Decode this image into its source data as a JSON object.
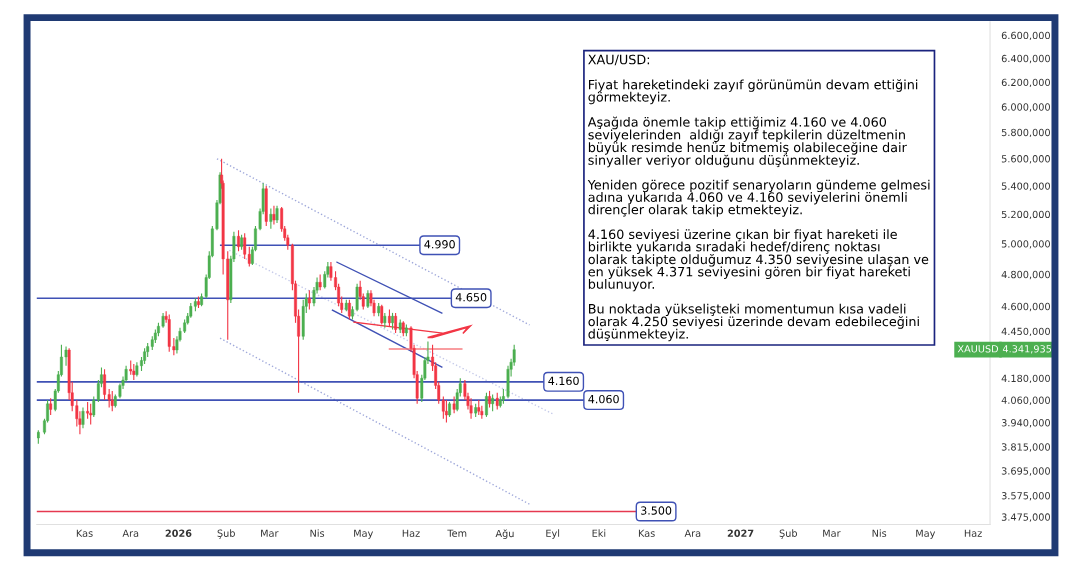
{
  "chart_data": {
    "type": "candlestick",
    "x": [
      "2025-10-02",
      "2025-10-06",
      "2025-10-08",
      "2025-10-10",
      "2025-10-13",
      "2025-10-15",
      "2025-10-17",
      "2025-10-20",
      "2025-10-22",
      "2025-10-24",
      "2025-10-27",
      "2025-10-29",
      "2025-10-31",
      "2025-11-03",
      "2025-11-05",
      "2025-11-07",
      "2025-11-10",
      "2025-11-12",
      "2025-11-14",
      "2025-11-17",
      "2025-11-19",
      "2025-11-21",
      "2025-11-24",
      "2025-11-26",
      "2025-11-28",
      "2025-12-01",
      "2025-12-03",
      "2025-12-05",
      "2025-12-08",
      "2025-12-10",
      "2025-12-12",
      "2025-12-15",
      "2025-12-17",
      "2025-12-19",
      "2025-12-22",
      "2025-12-24",
      "2025-12-26",
      "2025-12-29",
      "2025-12-31",
      "2026-01-02",
      "2026-01-05",
      "2026-01-07",
      "2026-01-09",
      "2026-01-12",
      "2026-01-14",
      "2026-01-16",
      "2026-01-19",
      "2026-01-21",
      "2026-01-23",
      "2026-01-26",
      "2026-01-28",
      "2026-01-29",
      "2026-01-30",
      "2026-02-02",
      "2026-02-04",
      "2026-02-06",
      "2026-02-09",
      "2026-02-11",
      "2026-02-13",
      "2026-02-16",
      "2026-02-18",
      "2026-02-20",
      "2026-02-23",
      "2026-02-25",
      "2026-02-27",
      "2026-03-02",
      "2026-03-04",
      "2026-03-06",
      "2026-03-09",
      "2026-03-11",
      "2026-03-13",
      "2026-03-16",
      "2026-03-18",
      "2026-03-20",
      "2026-03-23",
      "2026-03-25",
      "2026-03-27",
      "2026-03-30",
      "2026-04-01",
      "2026-04-03",
      "2026-04-06",
      "2026-04-08",
      "2026-04-10",
      "2026-04-13",
      "2026-04-15",
      "2026-04-17",
      "2026-04-20",
      "2026-04-22",
      "2026-04-24",
      "2026-04-27",
      "2026-04-29",
      "2026-05-01",
      "2026-05-04",
      "2026-05-06",
      "2026-05-08",
      "2026-05-11",
      "2026-05-13",
      "2026-05-15",
      "2026-05-18",
      "2026-05-20",
      "2026-05-22",
      "2026-05-25",
      "2026-05-27",
      "2026-05-29",
      "2026-06-01",
      "2026-06-03",
      "2026-06-05",
      "2026-06-08",
      "2026-06-10",
      "2026-06-12",
      "2026-06-15",
      "2026-06-17",
      "2026-06-19",
      "2026-06-22",
      "2026-06-24",
      "2026-06-26",
      "2026-06-29",
      "2026-07-01",
      "2026-07-03",
      "2026-07-06",
      "2026-07-08",
      "2026-07-10",
      "2026-07-13",
      "2026-07-15",
      "2026-07-17",
      "2026-07-20",
      "2026-07-22",
      "2026-07-24",
      "2026-07-27",
      "2026-07-29",
      "2026-07-31",
      "2026-08-03",
      "2026-08-05",
      "2026-08-07"
    ],
    "ohlc": [
      [
        3860,
        3900,
        3830,
        3890
      ],
      [
        3890,
        3960,
        3880,
        3950
      ],
      [
        3950,
        4060,
        3940,
        4040
      ],
      [
        4040,
        4070,
        3980,
        4010
      ],
      [
        4010,
        4120,
        4000,
        4110
      ],
      [
        4110,
        4220,
        4100,
        4200
      ],
      [
        4200,
        4370,
        4190,
        4300
      ],
      [
        4300,
        4360,
        4250,
        4340
      ],
      [
        4340,
        4350,
        4060,
        4100
      ],
      [
        4100,
        4160,
        4000,
        4030
      ],
      [
        4030,
        4060,
        3920,
        3960
      ],
      [
        3960,
        4000,
        3880,
        3930
      ],
      [
        3930,
        4020,
        3910,
        4000
      ],
      [
        4000,
        4050,
        3960,
        3990
      ],
      [
        3990,
        4040,
        3930,
        3980
      ],
      [
        3980,
        4080,
        3970,
        4060
      ],
      [
        4060,
        4170,
        4050,
        4150
      ],
      [
        4150,
        4240,
        4130,
        4200
      ],
      [
        4200,
        4230,
        4060,
        4090
      ],
      [
        4090,
        4120,
        4020,
        4060
      ],
      [
        4060,
        4110,
        4000,
        4030
      ],
      [
        4030,
        4090,
        4020,
        4080
      ],
      [
        4080,
        4150,
        4070,
        4140
      ],
      [
        4140,
        4190,
        4120,
        4170
      ],
      [
        4170,
        4250,
        4160,
        4230
      ],
      [
        4230,
        4280,
        4200,
        4220
      ],
      [
        4220,
        4260,
        4170,
        4200
      ],
      [
        4200,
        4270,
        4190,
        4250
      ],
      [
        4250,
        4300,
        4220,
        4280
      ],
      [
        4280,
        4350,
        4260,
        4330
      ],
      [
        4330,
        4380,
        4300,
        4360
      ],
      [
        4360,
        4420,
        4340,
        4400
      ],
      [
        4400,
        4460,
        4380,
        4440
      ],
      [
        4440,
        4500,
        4420,
        4480
      ],
      [
        4480,
        4560,
        4470,
        4540
      ],
      [
        4540,
        4570,
        4500,
        4520
      ],
      [
        4520,
        4550,
        4330,
        4360
      ],
      [
        4360,
        4410,
        4310,
        4340
      ],
      [
        4340,
        4420,
        4320,
        4400
      ],
      [
        4400,
        4470,
        4390,
        4450
      ],
      [
        4450,
        4520,
        4440,
        4500
      ],
      [
        4500,
        4560,
        4490,
        4540
      ],
      [
        4540,
        4620,
        4530,
        4600
      ],
      [
        4600,
        4650,
        4570,
        4630
      ],
      [
        4630,
        4660,
        4590,
        4610
      ],
      [
        4610,
        4680,
        4600,
        4660
      ],
      [
        4660,
        4800,
        4650,
        4780
      ],
      [
        4780,
        4950,
        4770,
        4920
      ],
      [
        4920,
        5120,
        4910,
        5100
      ],
      [
        5100,
        5300,
        5090,
        5280
      ],
      [
        5280,
        5500,
        5270,
        5480
      ],
      [
        5480,
        5600,
        5380,
        5420
      ],
      [
        5420,
        5440,
        4800,
        4900
      ],
      [
        4900,
        4950,
        4400,
        4640
      ],
      [
        4640,
        4920,
        4620,
        4900
      ],
      [
        4900,
        5080,
        4880,
        5050
      ],
      [
        5050,
        5090,
        4950,
        4980
      ],
      [
        4980,
        5060,
        4960,
        5040
      ],
      [
        5040,
        5070,
        4900,
        4930
      ],
      [
        4930,
        4980,
        4850,
        4870
      ],
      [
        4870,
        4980,
        4860,
        4960
      ],
      [
        4960,
        5120,
        4950,
        5100
      ],
      [
        5100,
        5240,
        5090,
        5220
      ],
      [
        5220,
        5420,
        5200,
        5380
      ],
      [
        5380,
        5400,
        5120,
        5150
      ],
      [
        5150,
        5240,
        5100,
        5200
      ],
      [
        5200,
        5260,
        5130,
        5160
      ],
      [
        5160,
        5260,
        5140,
        5240
      ],
      [
        5240,
        5250,
        5080,
        5100
      ],
      [
        5100,
        5120,
        5020,
        5040
      ],
      [
        5040,
        5060,
        4960,
        4990
      ],
      [
        4990,
        5000,
        4700,
        4740
      ],
      [
        4740,
        4760,
        4500,
        4540
      ],
      [
        4540,
        4580,
        4100,
        4420
      ],
      [
        4420,
        4640,
        4400,
        4600
      ],
      [
        4600,
        4680,
        4560,
        4650
      ],
      [
        4650,
        4700,
        4580,
        4620
      ],
      [
        4620,
        4720,
        4600,
        4700
      ],
      [
        4700,
        4780,
        4680,
        4750
      ],
      [
        4750,
        4800,
        4700,
        4720
      ],
      [
        4720,
        4820,
        4710,
        4800
      ],
      [
        4800,
        4880,
        4780,
        4850
      ],
      [
        4850,
        4880,
        4760,
        4780
      ],
      [
        4780,
        4820,
        4700,
        4720
      ],
      [
        4720,
        4740,
        4600,
        4620
      ],
      [
        4620,
        4660,
        4560,
        4580
      ],
      [
        4580,
        4640,
        4570,
        4620
      ],
      [
        4620,
        4640,
        4520,
        4540
      ],
      [
        4540,
        4600,
        4520,
        4580
      ],
      [
        4580,
        4740,
        4570,
        4720
      ],
      [
        4720,
        4760,
        4640,
        4660
      ],
      [
        4660,
        4680,
        4580,
        4600
      ],
      [
        4600,
        4700,
        4590,
        4680
      ],
      [
        4680,
        4700,
        4600,
        4620
      ],
      [
        4620,
        4640,
        4540,
        4560
      ],
      [
        4560,
        4620,
        4540,
        4600
      ],
      [
        4600,
        4610,
        4490,
        4500
      ],
      [
        4500,
        4560,
        4470,
        4540
      ],
      [
        4540,
        4580,
        4480,
        4500
      ],
      [
        4500,
        4560,
        4460,
        4540
      ],
      [
        4540,
        4560,
        4440,
        4460
      ],
      [
        4460,
        4520,
        4440,
        4500
      ],
      [
        4500,
        4510,
        4420,
        4440
      ],
      [
        4440,
        4490,
        4420,
        4470
      ],
      [
        4470,
        4480,
        4330,
        4350
      ],
      [
        4350,
        4370,
        4180,
        4200
      ],
      [
        4200,
        4220,
        4040,
        4070
      ],
      [
        4070,
        4200,
        4050,
        4180
      ],
      [
        4180,
        4300,
        4170,
        4280
      ],
      [
        4280,
        4390,
        4260,
        4300
      ],
      [
        4300,
        4370,
        4220,
        4250
      ],
      [
        4250,
        4270,
        4120,
        4140
      ],
      [
        4140,
        4160,
        4040,
        4060
      ],
      [
        4060,
        4080,
        3960,
        4000
      ],
      [
        4000,
        4060,
        3940,
        3980
      ],
      [
        3980,
        4050,
        3970,
        4040
      ],
      [
        4040,
        4080,
        3990,
        4010
      ],
      [
        4010,
        4120,
        4000,
        4100
      ],
      [
        4100,
        4180,
        4080,
        4150
      ],
      [
        4150,
        4170,
        4060,
        4080
      ],
      [
        4080,
        4100,
        4010,
        4030
      ],
      [
        4030,
        4070,
        3960,
        3990
      ],
      [
        3990,
        4040,
        3970,
        4020
      ],
      [
        4020,
        4060,
        3980,
        4000
      ],
      [
        4000,
        4030,
        3960,
        3980
      ],
      [
        3980,
        4100,
        3970,
        4080
      ],
      [
        4080,
        4110,
        4020,
        4040
      ],
      [
        4040,
        4090,
        4000,
        4070
      ],
      [
        4070,
        4100,
        4010,
        4030
      ],
      [
        4030,
        4080,
        4020,
        4060
      ],
      [
        4060,
        4120,
        4040,
        4080
      ],
      [
        4080,
        4250,
        4070,
        4230
      ],
      [
        4230,
        4290,
        4190,
        4270
      ],
      [
        4270,
        4371,
        4250,
        4341.935
      ]
    ],
    "colors": [
      "#4caf50",
      "#4caf50",
      "#4caf50",
      "#f23645",
      "#4caf50",
      "#4caf50",
      "#4caf50",
      "#4caf50",
      "#f23645",
      "#f23645",
      "#f23645",
      "#f23645",
      "#4caf50",
      "#f23645",
      "#f23645",
      "#4caf50",
      "#4caf50",
      "#4caf50",
      "#f23645",
      "#f23645",
      "#f23645",
      "#4caf50",
      "#4caf50",
      "#4caf50",
      "#4caf50",
      "#f23645",
      "#f23645",
      "#4caf50",
      "#4caf50",
      "#4caf50",
      "#4caf50",
      "#4caf50",
      "#4caf50",
      "#4caf50",
      "#4caf50",
      "#f23645",
      "#f23645",
      "#f23645",
      "#4caf50",
      "#4caf50",
      "#4caf50",
      "#4caf50",
      "#4caf50",
      "#4caf50",
      "#f23645",
      "#4caf50",
      "#4caf50",
      "#4caf50",
      "#4caf50",
      "#4caf50",
      "#4caf50",
      "#f23645",
      "#f23645",
      "#f23645",
      "#4caf50",
      "#4caf50",
      "#f23645",
      "#4caf50",
      "#f23645",
      "#f23645",
      "#4caf50",
      "#4caf50",
      "#4caf50",
      "#4caf50",
      "#f23645",
      "#4caf50",
      "#f23645",
      "#4caf50",
      "#f23645",
      "#f23645",
      "#f23645",
      "#f23645",
      "#f23645",
      "#f23645",
      "#4caf50",
      "#4caf50",
      "#f23645",
      "#4caf50",
      "#4caf50",
      "#f23645",
      "#4caf50",
      "#4caf50",
      "#f23645",
      "#f23645",
      "#f23645",
      "#f23645",
      "#4caf50",
      "#f23645",
      "#4caf50",
      "#4caf50",
      "#f23645",
      "#f23645",
      "#4caf50",
      "#f23645",
      "#f23645",
      "#4caf50",
      "#f23645",
      "#4caf50",
      "#f23645",
      "#4caf50",
      "#f23645",
      "#4caf50",
      "#f23645",
      "#4caf50",
      "#f23645",
      "#f23645",
      "#f23645",
      "#4caf50",
      "#4caf50",
      "#4caf50",
      "#f23645",
      "#f23645",
      "#f23645",
      "#f23645",
      "#f23645",
      "#4caf50",
      "#f23645",
      "#4caf50",
      "#4caf50",
      "#f23645",
      "#f23645",
      "#f23645",
      "#4caf50",
      "#f23645",
      "#f23645",
      "#4caf50",
      "#f23645",
      "#4caf50",
      "#f23645",
      "#4caf50",
      "#4caf50",
      "#4caf50",
      "#4caf50",
      "#4caf50"
    ],
    "series": [
      {
        "type": "line",
        "x": [
          "2026-01-26",
          "2026-08-17"
        ],
        "values": [
          5599,
          4487
        ],
        "color": "#9fa8da",
        "line_style": "dotted"
      },
      {
        "type": "line",
        "x": [
          "2026-02-03",
          "2026-09-02"
        ],
        "values": [
          4956,
          3982
        ],
        "color": "#c5cae9",
        "line_style": "dotted"
      },
      {
        "type": "line",
        "x": [
          "2026-01-28",
          "2026-08-17"
        ],
        "values": [
          4409,
          3534
        ],
        "color": "#9fa8da",
        "line_style": "dotted"
      },
      {
        "type": "line",
        "x": [
          "2026-04-14",
          "2026-06-21"
        ],
        "values": [
          4878,
          4559
        ],
        "color": "#3f51b5",
        "line_style": "solid"
      },
      {
        "type": "line",
        "x": [
          "2026-04-11",
          "2026-06-21"
        ],
        "values": [
          4577,
          4243
        ],
        "color": "#3f51b5",
        "line_style": "solid"
      },
      {
        "type": "line",
        "x": [
          "2026-04-25",
          "2026-06-21"
        ],
        "values": [
          4504,
          4439
        ],
        "color": "#f23645",
        "line_style": "solid"
      },
      {
        "type": "line",
        "x": [
          "2026-05-18",
          "2026-07-04"
        ],
        "values": [
          4346,
          4346
        ],
        "color": "#f77c80",
        "line_style": "solid"
      }
    ],
    "ref_lines": [
      {
        "axis": "y",
        "value": 4990,
        "label": "4.990",
        "color": "#3f51b5"
      },
      {
        "axis": "y",
        "value": 4650,
        "label": "4.650",
        "color": "#3f51b5"
      },
      {
        "axis": "y",
        "value": 4160,
        "label": "4.160",
        "color": "#3f51b5"
      },
      {
        "axis": "y",
        "value": 4060,
        "label": "4.060",
        "color": "#3f51b5"
      },
      {
        "axis": "y",
        "value": 3500,
        "label": "3.500",
        "color": "#e53950"
      }
    ],
    "log": true,
    "xlim": [
      "2025-10-01",
      "2027-06-12"
    ],
    "xticks": [
      {
        "value": "2025-11-01",
        "label": "Kas"
      },
      {
        "value": "2025-12-01",
        "label": "Ara"
      },
      {
        "value": "2026-01-01",
        "label": "2026"
      },
      {
        "value": "2026-02-01",
        "label": "Şub"
      },
      {
        "value": "2026-03-01",
        "label": "Mar"
      },
      {
        "value": "2026-04-01",
        "label": "Nis"
      },
      {
        "value": "2026-05-01",
        "label": "May"
      },
      {
        "value": "2026-06-01",
        "label": "Haz"
      },
      {
        "value": "2026-07-01",
        "label": "Tem"
      },
      {
        "value": "2026-08-01",
        "label": "Ağu"
      },
      {
        "value": "2026-09-01",
        "label": "Eyl"
      },
      {
        "value": "2026-10-01",
        "label": "Eki"
      },
      {
        "value": "2026-11-01",
        "label": "Kas"
      },
      {
        "value": "2026-12-01",
        "label": "Ara"
      },
      {
        "value": "2027-01-01",
        "label": "2027"
      },
      {
        "value": "2027-02-01",
        "label": "Şub"
      },
      {
        "value": "2027-03-01",
        "label": "Mar"
      },
      {
        "value": "2027-04-01",
        "label": "Nis"
      },
      {
        "value": "2027-05-01",
        "label": "May"
      },
      {
        "value": "2027-06-01",
        "label": "Haz"
      }
    ],
    "ylim": [
      3440,
      6720
    ],
    "yticks": [
      {
        "value": 6600,
        "label": "6.600,000"
      },
      {
        "value": 6400,
        "label": "6.400,000"
      },
      {
        "value": 6200,
        "label": "6.200,000"
      },
      {
        "value": 6000,
        "label": "6.000,000"
      },
      {
        "value": 5800,
        "label": "5.800,000"
      },
      {
        "value": 5600,
        "label": "5.600,000"
      },
      {
        "value": 5400,
        "label": "5.400,000"
      },
      {
        "value": 5200,
        "label": "5.200,000"
      },
      {
        "value": 5000,
        "label": "5.000,000"
      },
      {
        "value": 4800,
        "label": "4.800,000"
      },
      {
        "value": 4600,
        "label": "4.600,000"
      },
      {
        "value": 4450,
        "label": "4.450,000"
      },
      {
        "value": 4180,
        "label": "4.180,000"
      },
      {
        "value": 4060,
        "label": "4.060,000"
      },
      {
        "value": 3940,
        "label": "3.940,000"
      },
      {
        "value": 3815,
        "label": "3.815,000"
      },
      {
        "value": 3695,
        "label": "3.695,000"
      },
      {
        "value": 3575,
        "label": "3.575,000"
      },
      {
        "value": 3475,
        "label": "3.475,000"
      }
    ],
    "grid": false,
    "annotations": [
      "XAU/USD:\n\nFiyat hareketindeki zayıf görünümün devam ettiğini\ngörmekteyiz.\n\nAşağıda önemle takip ettiğimiz 4.160 ve 4.060\nseviyelerinden  aldığı zayıf tepkilerin düzeltmenin\nbüyük resimde henüz bitmemiş olabileceğine dair\nsinyaller veriyor olduğunu düşünmekteyiz.\n\nYeniden görece pozitif senaryoların gündeme gelmesi\nadına yukarıda 4.060 ve 4.160 seviyelerini önemli\ndirençler olarak takip etmekteyiz.\n\n4.160 seviyesi üzerine çıkan bir fiyat hareketi ile\nbirlikte yukarıda sıradaki hedef/direnç noktası\nolarak takipte olduğumuz 4.350 seviyesine ulaşan ve\nen yüksek 4.371 seviyesini gören bir fiyat hareketi\nbulunuyor.\n\nBu noktada yükselişteki momentumun kısa vadeli\nolarak 4.250 seviyesi üzerinde devam edebileceğini\ndüşünmekteyiz.",
      "XAUUSD",
      "4.341,935"
    ]
  }
}
